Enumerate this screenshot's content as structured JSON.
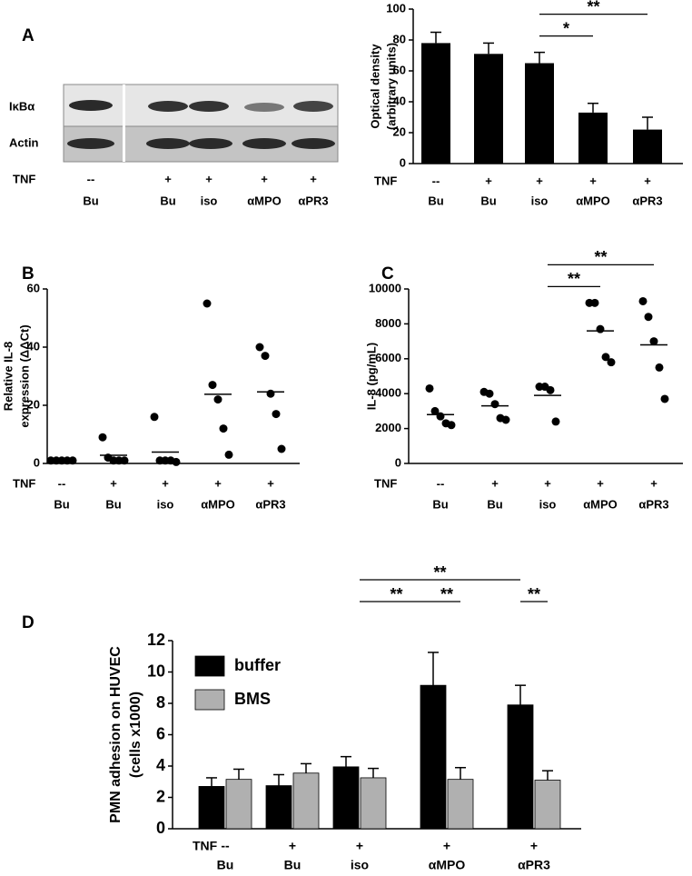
{
  "panel_labels": [
    "A",
    "B",
    "C",
    "D"
  ],
  "blot": {
    "rows": [
      "IκBα",
      "Actin"
    ],
    "row_label": "TNF",
    "tnf": [
      "--",
      "+",
      "+",
      "+",
      "+"
    ],
    "categories": [
      "Bu",
      "Bu",
      "iso",
      "αMPO",
      "αPR3"
    ]
  },
  "chart_data": [
    {
      "type": "bar",
      "y_label": [
        "Optical density",
        "(arbitrary units)"
      ],
      "row_label": "TNF",
      "tnf": [
        "--",
        "+",
        "+",
        "+",
        "+"
      ],
      "categories": [
        "Bu",
        "Bu",
        "iso",
        "αMPO",
        "αPR3"
      ],
      "values": [
        78,
        71,
        65,
        33,
        22
      ],
      "errors": [
        7,
        7,
        7,
        6,
        8
      ],
      "color": "#000000",
      "ylim": [
        0,
        100
      ],
      "yticks": [
        0,
        20,
        40,
        60,
        80,
        100
      ],
      "brackets": [
        {
          "from": 2,
          "to": 3,
          "label": "*"
        },
        {
          "from": 2,
          "to": 4,
          "label": "**"
        }
      ]
    },
    {
      "type": "dot",
      "y_label": [
        "Relative IL-8",
        "expression (ΔΔCt)"
      ],
      "row_label": "TNF",
      "tnf": [
        "--",
        "+",
        "+",
        "+",
        "+"
      ],
      "categories": [
        "Bu",
        "Bu",
        "iso",
        "αMPO",
        "αPR3"
      ],
      "values": [
        [
          1,
          1,
          1,
          1,
          1
        ],
        [
          9,
          2,
          1,
          1,
          1
        ],
        [
          16,
          1,
          1,
          1,
          0.5
        ],
        [
          55,
          27,
          22,
          12,
          3
        ],
        [
          40,
          37,
          24,
          17,
          5
        ]
      ],
      "means": [
        1,
        2.8,
        3.9,
        23.8,
        24.6
      ],
      "color": "#000000",
      "ylim": [
        0,
        60
      ],
      "yticks": [
        0,
        20,
        40,
        60
      ]
    },
    {
      "type": "dot",
      "y_label": [
        "IL-8 (pg/mL)"
      ],
      "row_label": "TNF",
      "tnf": [
        "--",
        "+",
        "+",
        "+",
        "+"
      ],
      "categories": [
        "Bu",
        "Bu",
        "iso",
        "αMPO",
        "αPR3"
      ],
      "values": [
        [
          4300,
          3000,
          2700,
          2300,
          2200
        ],
        [
          4100,
          4000,
          3400,
          2600,
          2500
        ],
        [
          4400,
          4400,
          4200,
          2400
        ],
        [
          9200,
          9200,
          7700,
          6100,
          5800
        ],
        [
          9300,
          8400,
          7000,
          5500,
          3700
        ]
      ],
      "means": [
        2800,
        3300,
        3900,
        7600,
        6800
      ],
      "color": "#000000",
      "ylim": [
        0,
        10000
      ],
      "yticks": [
        0,
        2000,
        4000,
        6000,
        8000,
        10000
      ],
      "brackets": [
        {
          "from": 2,
          "to": 3,
          "label": "**"
        },
        {
          "from": 2,
          "to": 4,
          "label": "**"
        }
      ]
    },
    {
      "type": "grouped_bar",
      "y_label": [
        "PMN adhesion on HUVEC",
        "(cells x1000)"
      ],
      "row_label": "TNF",
      "tnf": [
        "--",
        "+",
        "+",
        "+",
        "+"
      ],
      "categories": [
        "Bu",
        "Bu",
        "iso",
        "αMPO",
        "αPR3"
      ],
      "series": [
        {
          "name": "buffer",
          "color": "#000000",
          "values": [
            2.7,
            2.75,
            3.95,
            9.15,
            7.9
          ],
          "errors": [
            0.55,
            0.7,
            0.65,
            2.1,
            1.25
          ]
        },
        {
          "name": "BMS",
          "color": "#b0b0b0",
          "values": [
            3.15,
            3.55,
            3.25,
            3.15,
            3.1
          ],
          "errors": [
            0.65,
            0.6,
            0.6,
            0.75,
            0.6
          ]
        }
      ],
      "legend": "upper left",
      "ylim": [
        0,
        12
      ],
      "yticks": [
        0,
        2,
        4,
        6,
        8,
        10,
        12
      ],
      "brackets": [
        {
          "from": 2,
          "to": [
            3,
            0
          ],
          "label": "**"
        },
        {
          "from": [
            3,
            0
          ],
          "to": [
            3,
            1
          ],
          "label": "**"
        },
        {
          "from": [
            4,
            0
          ],
          "to": [
            4,
            1
          ],
          "label": "**"
        },
        {
          "from": 2,
          "to": [
            4,
            0
          ],
          "label": "**"
        }
      ]
    }
  ]
}
